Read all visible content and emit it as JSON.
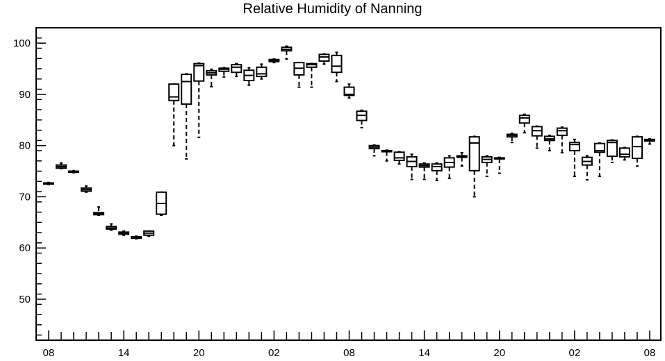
{
  "chart_data": {
    "type": "box",
    "title": "Relative Humidity of Nanning",
    "xlabel": "",
    "ylabel": "",
    "ylim": [
      42,
      103
    ],
    "yticks": [
      50,
      60,
      70,
      80,
      90,
      100
    ],
    "xtick_labels": [
      "08",
      "14",
      "20",
      "02",
      "08",
      "14",
      "20",
      "02",
      "08"
    ],
    "xtick_hours": [
      0,
      6,
      12,
      18,
      24,
      30,
      36,
      42,
      48
    ],
    "grid": false,
    "boxes": [
      {
        "hour": 0,
        "min": 72.4,
        "q1": 72.5,
        "median": 72.6,
        "q3": 72.7,
        "max": 72.8
      },
      {
        "hour": 1,
        "min": 75.5,
        "q1": 75.6,
        "median": 75.9,
        "q3": 76.2,
        "max": 76.6
      },
      {
        "hour": 2,
        "min": 74.7,
        "q1": 74.8,
        "median": 74.9,
        "q3": 75.0,
        "max": 75.1
      },
      {
        "hour": 3,
        "min": 70.9,
        "q1": 71.1,
        "median": 71.4,
        "q3": 71.7,
        "max": 72.1
      },
      {
        "hour": 4,
        "min": 66.4,
        "q1": 66.5,
        "median": 66.7,
        "q3": 66.9,
        "max": 68.0
      },
      {
        "hour": 5,
        "min": 63.5,
        "q1": 63.7,
        "median": 63.9,
        "q3": 64.2,
        "max": 64.7
      },
      {
        "hour": 6,
        "min": 62.5,
        "q1": 62.7,
        "median": 62.9,
        "q3": 63.1,
        "max": 63.3
      },
      {
        "hour": 7,
        "min": 61.8,
        "q1": 61.9,
        "median": 62.0,
        "q3": 62.2,
        "max": 62.3
      },
      {
        "hour": 8,
        "min": 62.3,
        "q1": 62.5,
        "median": 62.9,
        "q3": 63.3,
        "max": 63.3
      },
      {
        "hour": 9,
        "min": 66.4,
        "q1": 66.6,
        "median": 68.7,
        "q3": 70.9,
        "max": 70.9
      },
      {
        "hour": 10,
        "min": 80.0,
        "q1": 88.8,
        "median": 89.5,
        "q3": 92.0,
        "max": 92.0
      },
      {
        "hour": 11,
        "min": 77.4,
        "q1": 88.1,
        "median": 92.5,
        "q3": 93.9,
        "max": 94.0
      },
      {
        "hour": 12,
        "min": 81.6,
        "q1": 92.6,
        "median": 95.6,
        "q3": 96.0,
        "max": 96.1
      },
      {
        "hour": 13,
        "min": 91.5,
        "q1": 93.8,
        "median": 94.2,
        "q3": 94.6,
        "max": 94.9
      },
      {
        "hour": 14,
        "min": 93.4,
        "q1": 94.5,
        "median": 94.9,
        "q3": 95.1,
        "max": 95.2
      },
      {
        "hour": 15,
        "min": 93.5,
        "q1": 94.3,
        "median": 95.3,
        "q3": 95.8,
        "max": 96.0
      },
      {
        "hour": 16,
        "min": 91.8,
        "q1": 92.7,
        "median": 93.7,
        "q3": 94.7,
        "max": 95.2
      },
      {
        "hour": 17,
        "min": 93.0,
        "q1": 93.5,
        "median": 94.0,
        "q3": 95.3,
        "max": 95.9
      },
      {
        "hour": 18,
        "min": 96.2,
        "q1": 96.4,
        "median": 96.6,
        "q3": 96.8,
        "max": 96.9
      },
      {
        "hour": 19,
        "min": 96.9,
        "q1": 98.5,
        "median": 98.8,
        "q3": 99.2,
        "max": 99.4
      },
      {
        "hour": 20,
        "min": 91.4,
        "q1": 93.8,
        "median": 95.1,
        "q3": 96.2,
        "max": 96.2
      },
      {
        "hour": 21,
        "min": 91.4,
        "q1": 95.3,
        "median": 95.8,
        "q3": 96.0,
        "max": 96.0
      },
      {
        "hour": 22,
        "min": 95.9,
        "q1": 96.5,
        "median": 97.3,
        "q3": 97.8,
        "max": 97.9
      },
      {
        "hour": 23,
        "min": 92.5,
        "q1": 94.3,
        "median": 95.5,
        "q3": 97.6,
        "max": 98.2
      },
      {
        "hour": 24,
        "min": 89.3,
        "q1": 89.8,
        "median": 90.0,
        "q3": 91.4,
        "max": 92.0
      },
      {
        "hour": 25,
        "min": 83.5,
        "q1": 84.9,
        "median": 85.9,
        "q3": 86.7,
        "max": 86.9
      },
      {
        "hour": 26,
        "min": 78.0,
        "q1": 79.4,
        "median": 79.7,
        "q3": 80.0,
        "max": 80.1
      },
      {
        "hour": 27,
        "min": 77.0,
        "q1": 78.8,
        "median": 78.9,
        "q3": 79.0,
        "max": 79.1
      },
      {
        "hour": 28,
        "min": 76.4,
        "q1": 77.1,
        "median": 77.6,
        "q3": 78.7,
        "max": 78.8
      },
      {
        "hour": 29,
        "min": 73.4,
        "q1": 75.9,
        "median": 76.9,
        "q3": 77.8,
        "max": 78.3
      },
      {
        "hour": 30,
        "min": 73.4,
        "q1": 75.8,
        "median": 76.1,
        "q3": 76.4,
        "max": 76.6
      },
      {
        "hour": 31,
        "min": 73.2,
        "q1": 75.1,
        "median": 75.9,
        "q3": 76.4,
        "max": 76.6
      },
      {
        "hour": 32,
        "min": 73.6,
        "q1": 75.8,
        "median": 76.7,
        "q3": 77.6,
        "max": 78.0
      },
      {
        "hour": 33,
        "min": 76.0,
        "q1": 77.7,
        "median": 77.8,
        "q3": 78.0,
        "max": 78.6
      },
      {
        "hour": 34,
        "min": 70.0,
        "q1": 75.1,
        "median": 80.5,
        "q3": 81.7,
        "max": 81.8
      },
      {
        "hour": 35,
        "min": 74.0,
        "q1": 76.7,
        "median": 77.3,
        "q3": 77.8,
        "max": 78.0
      },
      {
        "hour": 36,
        "min": 74.6,
        "q1": 77.4,
        "median": 77.5,
        "q3": 77.6,
        "max": 77.7
      },
      {
        "hour": 37,
        "min": 80.6,
        "q1": 81.7,
        "median": 82.0,
        "q3": 82.2,
        "max": 82.4
      },
      {
        "hour": 38,
        "min": 82.5,
        "q1": 84.4,
        "median": 85.4,
        "q3": 85.9,
        "max": 86.1
      },
      {
        "hour": 39,
        "min": 79.5,
        "q1": 81.9,
        "median": 82.9,
        "q3": 83.7,
        "max": 83.8
      },
      {
        "hour": 40,
        "min": 79.0,
        "q1": 81.0,
        "median": 81.3,
        "q3": 81.8,
        "max": 82.0
      },
      {
        "hour": 41,
        "min": 78.6,
        "q1": 82.0,
        "median": 82.9,
        "q3": 83.4,
        "max": 83.6
      },
      {
        "hour": 42,
        "min": 74.0,
        "q1": 79.0,
        "median": 80.2,
        "q3": 80.6,
        "max": 81.2
      },
      {
        "hour": 43,
        "min": 73.3,
        "q1": 76.2,
        "median": 76.9,
        "q3": 77.7,
        "max": 78.0
      },
      {
        "hour": 44,
        "min": 74.0,
        "q1": 78.7,
        "median": 79.0,
        "q3": 80.4,
        "max": 80.5
      },
      {
        "hour": 45,
        "min": 76.7,
        "q1": 77.9,
        "median": 80.6,
        "q3": 81.0,
        "max": 81.1
      },
      {
        "hour": 46,
        "min": 77.2,
        "q1": 77.8,
        "median": 78.3,
        "q3": 79.5,
        "max": 79.6
      },
      {
        "hour": 47,
        "min": 76.0,
        "q1": 77.5,
        "median": 79.8,
        "q3": 81.7,
        "max": 81.8
      },
      {
        "hour": 48,
        "min": 80.3,
        "q1": 80.9,
        "median": 81.1,
        "q3": 81.2,
        "max": 81.3
      }
    ]
  }
}
